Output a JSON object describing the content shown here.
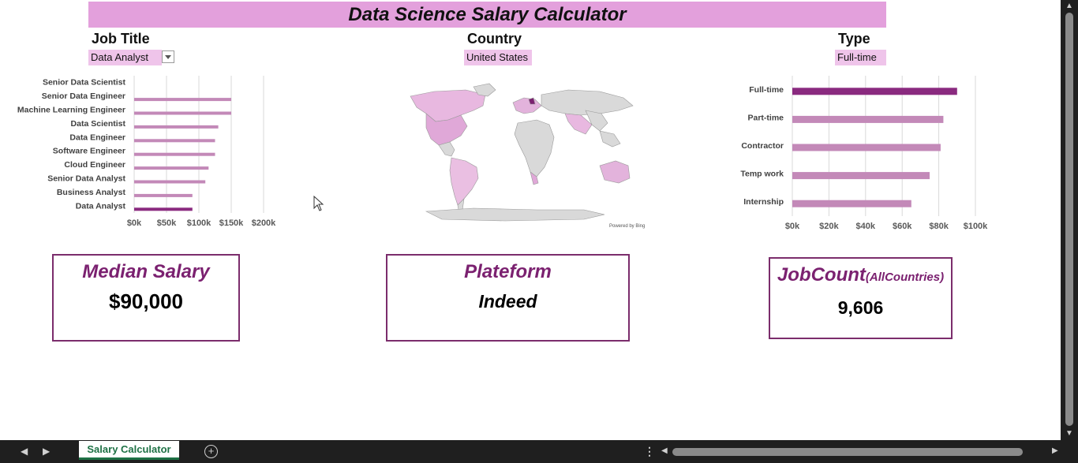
{
  "title": "Data Science Salary Calculator",
  "fields": {
    "job_title_label": "Job Title",
    "job_title_value": "Data Analyst",
    "country_label": "Country",
    "country_value": "United States",
    "type_label": "Type",
    "type_value": "Full-time"
  },
  "map": {
    "credit": "Powered by Bing"
  },
  "kpis": {
    "median_title": "Median Salary",
    "median_value": "$90,000",
    "platform_title": "Plateform",
    "platform_value": "Indeed",
    "jobcount_title": "JobCount",
    "jobcount_suffix": "(AllCountries)",
    "jobcount_value": "9,606"
  },
  "sheet_tab": "Salary Calculator",
  "colors": {
    "bar": "#c389b8",
    "highlight": "#8a2a7f",
    "title_bg": "#e3a0dc",
    "kpi_border": "#7b2d6c",
    "kpi_title": "#7b2170"
  },
  "chart_data": [
    {
      "type": "bar",
      "orientation": "horizontal",
      "categories": [
        "Senior Data Scientist",
        "Senior Data Engineer",
        "Machine Learning Engineer",
        "Data Scientist",
        "Data Engineer",
        "Software Engineer",
        "Cloud Engineer",
        "Senior Data Analyst",
        "Business Analyst",
        "Data Analyst"
      ],
      "values": [
        0,
        150000,
        150000,
        130000,
        125000,
        125000,
        115000,
        110000,
        90000,
        90000
      ],
      "highlight": "Data Analyst",
      "xlim": [
        0,
        200000
      ],
      "xticks": [
        "$0k",
        "$50k",
        "$100k",
        "$150k",
        "$200k"
      ],
      "grid": true
    },
    {
      "type": "bar",
      "orientation": "horizontal",
      "categories": [
        "Full-time",
        "Part-time",
        "Contractor",
        "Temp work",
        "Internship"
      ],
      "values": [
        90000,
        82500,
        81000,
        75000,
        65000
      ],
      "highlight": "Full-time",
      "xlim": [
        0,
        100000
      ],
      "xticks": [
        "$0k",
        "$20k",
        "$40k",
        "$60k",
        "$80k",
        "$100k"
      ],
      "grid": true
    }
  ]
}
